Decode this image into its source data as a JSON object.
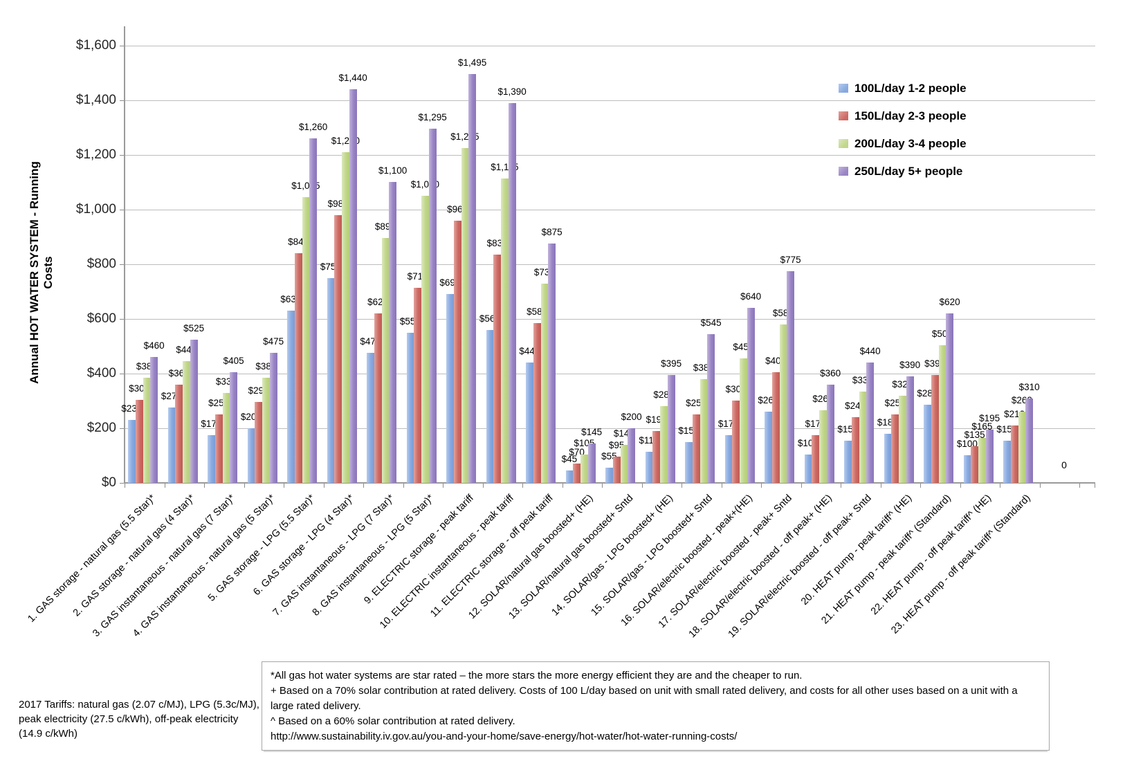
{
  "chart_data": {
    "type": "bar",
    "y_axis_title": "Annual HOT WATER SYSTEM - Running Costs",
    "ylim": [
      0,
      1600
    ],
    "ytick_step": 200,
    "ytick_labels": [
      "$0",
      "$200",
      "$400",
      "$600",
      "$800",
      "$1,000",
      "$1,200",
      "$1,400",
      "$1,600"
    ],
    "grid": true,
    "legend_position": "right-top",
    "extra_label": "0",
    "categories": [
      "1. GAS storage - natural gas (5.5 Star)*",
      "2. GAS storage - natural gas (4 Star)*",
      "3. GAS instantaneous - natural gas (7 Star)*",
      "4. GAS instantaneous - natural gas (5 Star)*",
      "5. GAS storage - LPG (5.5 Star)*",
      "6. GAS storage - LPG (4 Star)*",
      "7. GAS instantaneous - LPG (7 Star)*",
      "8. GAS instantaneous - LPG (5 Star)*",
      "9. ELECTRIC storage - peak tariff",
      "10. ELECTRIC instantaneous - peak tariff",
      "11. ELECTRIC storage - off peak tariff",
      "12. SOLAR/natural gas boosted+ (HE)",
      "13. SOLAR/natural gas boosted+ Sntd",
      "14. SOLAR/gas - LPG boosted+ (HE)",
      "15. SOLAR/gas - LPG boosted+ Sntd",
      "16. SOLAR/electric boosted - peak+(HE)",
      "17. SOLAR/electric boosted - peak+ Sntd",
      "18. SOLAR/electric boosted - off peak+ (HE)",
      "19. SOLAR/electric boosted - off peak+ Sntd",
      "20. HEAT pump - peak tariff^ (HE)",
      "21. HEAT pump - peak tariff^ (Standard)",
      "22. HEAT pump - off peak tariff^ (HE)",
      "23. HEAT pump - off peak tariff^ (Standard)"
    ],
    "series": [
      {
        "name": "100L/day 1-2 people",
        "color_light": "#b6cbee",
        "color": "#87a9e0",
        "color_dark": "#7b9cd6",
        "values": [
          230,
          275,
          175,
          200,
          630,
          750,
          475,
          550,
          690,
          560,
          440,
          45,
          55,
          115,
          150,
          175,
          260,
          105,
          155,
          180,
          285,
          100,
          155
        ]
      },
      {
        "name": "150L/day 2-3 people",
        "color_light": "#e2a29d",
        "color": "#cd6a64",
        "color_dark": "#c05a54",
        "values": [
          305,
          360,
          250,
          295,
          840,
          980,
          620,
          715,
          960,
          835,
          585,
          70,
          95,
          190,
          250,
          300,
          405,
          175,
          240,
          250,
          395,
          135,
          210
        ]
      },
      {
        "name": "200L/day 3-4 people",
        "color_light": "#dce8bf",
        "color": "#c1d689",
        "color_dark": "#b4cf79",
        "values": [
          385,
          445,
          330,
          385,
          1045,
          1210,
          895,
          1050,
          1225,
          1115,
          730,
          105,
          140,
          280,
          380,
          455,
          580,
          265,
          335,
          320,
          505,
          165,
          260
        ]
      },
      {
        "name": "250L/day 5+ people",
        "color_light": "#c2b3db",
        "color": "#9884c4",
        "color_dark": "#8a75ba",
        "values": [
          460,
          525,
          405,
          475,
          1260,
          1440,
          1100,
          1295,
          1495,
          1390,
          875,
          145,
          200,
          395,
          545,
          640,
          775,
          360,
          440,
          390,
          620,
          195,
          310
        ]
      }
    ]
  },
  "notes": {
    "tariffs": "2017 Tariffs: natural gas (2.07 c/MJ), LPG (5.3c/MJ), peak electricity (27.5 c/kWh), off-peak electricity (14.9 c/kWh)",
    "footnote_lines": [
      "*All gas hot water systems are star rated – the more stars the more energy efficient they are and the cheaper to run.",
      "+ Based on a 70% solar contribution at rated delivery. Costs of 100 L/day based on unit with small rated delivery, and costs for all other uses based on a unit with a large rated delivery.",
      "^ Based on a 60% solar contribution at rated delivery.",
      "http://www.sustainability.iv.gov.au/you-and-your-home/save-energy/hot-water/hot-water-running-costs/"
    ]
  }
}
